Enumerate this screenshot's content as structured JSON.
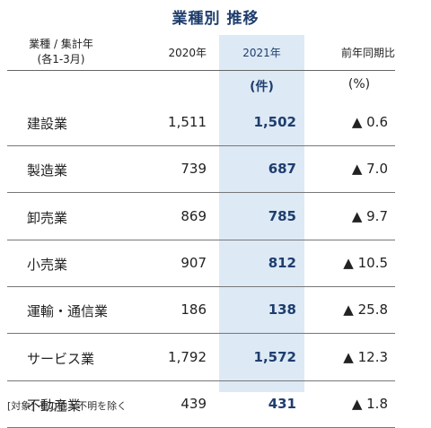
{
  "title": "業種別 推移",
  "header": {
    "category_line1": "業種 / 集計年",
    "category_line2": "(各1-3月)",
    "col_2020": "2020年",
    "col_2021": "2021年",
    "col_yoy": "前年同期比"
  },
  "units": {
    "count": "(件)",
    "percent": "(%)"
  },
  "rows": [
    {
      "category": "建設業",
      "y2020": "1,511",
      "y2021": "1,502",
      "yoy": "▲ 0.6"
    },
    {
      "category": "製造業",
      "y2020": "739",
      "y2021": "687",
      "yoy": "▲ 7.0"
    },
    {
      "category": "卸売業",
      "y2020": "869",
      "y2021": "785",
      "yoy": "▲ 9.7"
    },
    {
      "category": "小売業",
      "y2020": "907",
      "y2021": "812",
      "yoy": "▲ 10.5"
    },
    {
      "category": "運輸・通信業",
      "y2020": "186",
      "y2021": "138",
      "yoy": "▲ 25.8"
    },
    {
      "category": "サービス業",
      "y2020": "1,792",
      "y2021": "1,572",
      "yoy": "▲ 12.3"
    },
    {
      "category": "不動産業",
      "y2020": "439",
      "y2021": "431",
      "yoy": "▲ 1.8"
    }
  ],
  "footnote": "[対象] その他・不明を除く",
  "colors": {
    "accent": "#1f3e6e",
    "highlight": "#dde9f5"
  }
}
